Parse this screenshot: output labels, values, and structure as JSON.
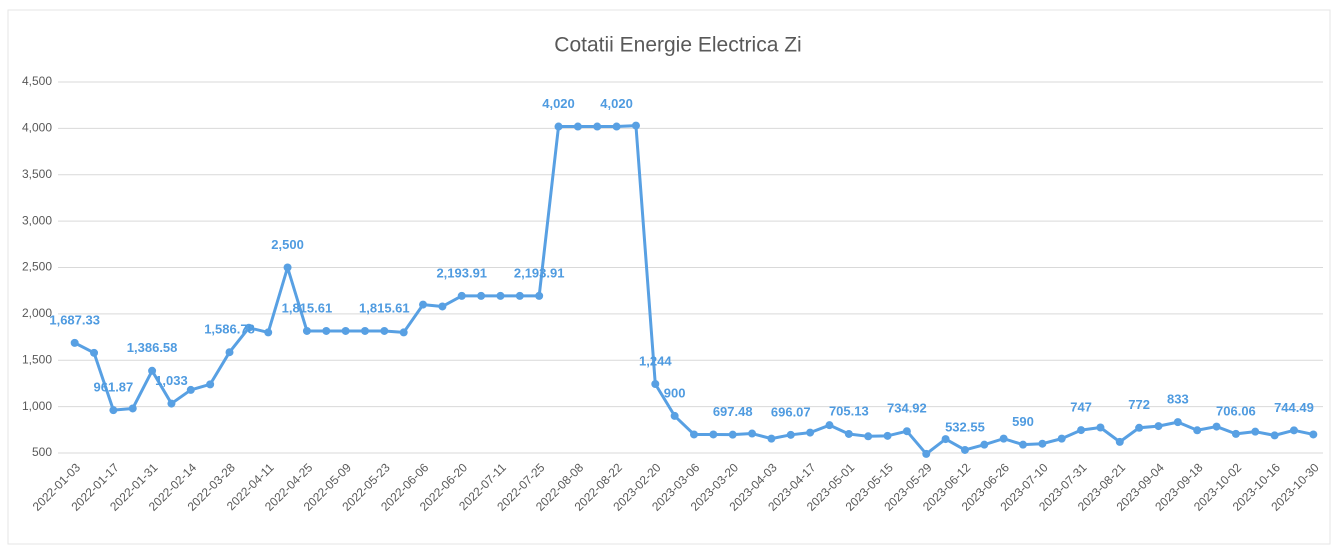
{
  "chart_data": {
    "type": "line",
    "title": "Cotatii Energie Electrica Zi",
    "categories": [
      "2022-01-03",
      null,
      "2022-01-17",
      null,
      "2022-01-31",
      null,
      "2022-02-14",
      null,
      "2022-03-28",
      null,
      "2022-04-11",
      null,
      "2022-04-25",
      null,
      "2022-05-09",
      null,
      "2022-05-23",
      null,
      "2022-06-06",
      null,
      "2022-06-20",
      null,
      "2022-07-11",
      null,
      "2022-07-25",
      null,
      "2022-08-08",
      null,
      "2022-08-22",
      null,
      "2023-02-20",
      null,
      "2023-03-06",
      null,
      "2023-03-20",
      null,
      "2023-04-03",
      null,
      "2023-04-17",
      null,
      "2023-05-01",
      null,
      "2023-05-15",
      null,
      "2023-05-29",
      null,
      "2023-06-12",
      null,
      "2023-06-26",
      null,
      "2023-07-10",
      null,
      "2023-07-31",
      null,
      "2023-08-21",
      null,
      "2023-09-04",
      null,
      "2023-09-18",
      null,
      "2023-10-02",
      null,
      "2023-10-16",
      null,
      "2023-10-30"
    ],
    "values": [
      1687.33,
      1580,
      961.87,
      980,
      1386.58,
      1033,
      1180,
      1240,
      1586.78,
      1850,
      1800,
      2500,
      1815.61,
      1815.61,
      1815.61,
      1815.61,
      1815.61,
      1800,
      2100,
      2080,
      2193.91,
      2193.91,
      2193.91,
      2193.91,
      2193.91,
      4020,
      4020,
      4020,
      4020,
      4030,
      1244,
      900,
      700,
      700,
      697.48,
      710,
      655,
      696.07,
      720,
      800,
      705.13,
      680,
      685,
      734.92,
      490,
      650,
      532.55,
      590,
      655,
      590,
      600,
      655,
      747,
      775,
      620,
      772,
      790,
      833,
      745,
      785,
      706.06,
      730,
      690,
      744.49,
      700
    ],
    "value_labels": [
      "1,687.33",
      null,
      "961.87",
      null,
      "1,386.58",
      "1,033",
      null,
      null,
      "1,586.78",
      null,
      null,
      "2,500",
      "1,815.61",
      null,
      null,
      null,
      "1,815.61",
      null,
      null,
      null,
      "2,193.91",
      null,
      null,
      null,
      "2,193.91",
      "4,020",
      null,
      null,
      "4,020",
      null,
      "1,244",
      "900",
      null,
      null,
      "697.48",
      null,
      null,
      "696.07",
      null,
      null,
      "705.13",
      null,
      null,
      "734.92",
      null,
      null,
      "532.55",
      null,
      null,
      "590",
      null,
      null,
      "747",
      null,
      null,
      "772",
      null,
      "833",
      null,
      null,
      "706.06",
      null,
      null,
      "744.49",
      null
    ],
    "color": "#58a0e3",
    "ylim": [
      500,
      4500
    ],
    "yticks": [
      500,
      {
        "value": 1000,
        "label": "1,000"
      },
      {
        "value": 1500,
        "label": "1,500"
      },
      {
        "value": 2000,
        "label": "2,000"
      },
      {
        "value": 2500,
        "label": "2,500"
      },
      {
        "value": 3000,
        "label": "3,000"
      },
      {
        "value": 3500,
        "label": "3,500"
      },
      {
        "value": 4000,
        "label": "4,000"
      },
      {
        "value": 4500,
        "label": "4,500"
      }
    ],
    "grid": true
  }
}
